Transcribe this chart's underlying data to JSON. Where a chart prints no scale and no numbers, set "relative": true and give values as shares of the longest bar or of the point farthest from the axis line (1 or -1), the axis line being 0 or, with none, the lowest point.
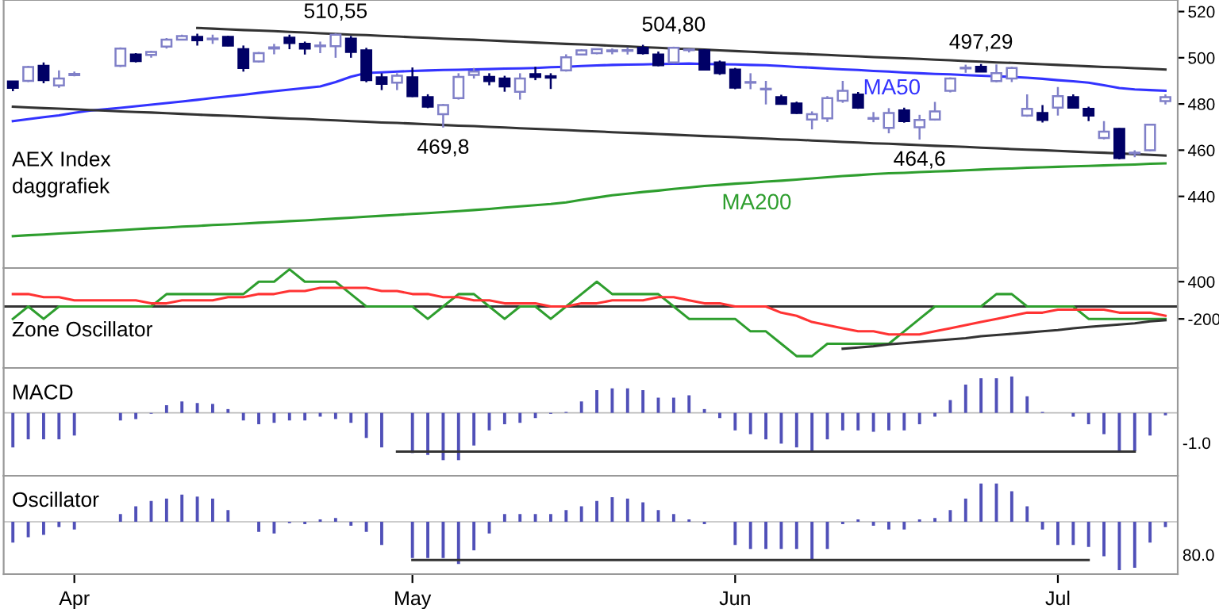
{
  "chart_data": [
    {
      "type": "candlestick",
      "title": "AEX Index",
      "subtitle": "daggrafiek",
      "categories": [
        null,
        null,
        null,
        null,
        null,
        null,
        null,
        null,
        null,
        null,
        null,
        null,
        null,
        null,
        null,
        null,
        null,
        null,
        null,
        null,
        null,
        null,
        null,
        null,
        null,
        null,
        null,
        null,
        null,
        null,
        null,
        null,
        null,
        null,
        null,
        null,
        null,
        null,
        null,
        null,
        null,
        null,
        null,
        null,
        null,
        null,
        null,
        null,
        null,
        null,
        null,
        null,
        null,
        null,
        null,
        null,
        null,
        null,
        null,
        null,
        null,
        null,
        null,
        null,
        null,
        null,
        null,
        null,
        null,
        null,
        null,
        null,
        null,
        null,
        null,
        null
      ],
      "ohlc": [
        [
          489.7,
          490,
          485.5,
          487
        ],
        [
          490,
          496.5,
          489.5,
          496
        ],
        [
          496.5,
          498,
          489,
          490.3
        ],
        [
          488,
          494.5,
          487,
          491
        ],
        [
          492.5,
          494,
          492,
          493
        ],
        null,
        null,
        [
          496.5,
          504.5,
          496,
          504
        ],
        [
          501.4,
          502,
          498,
          498.6
        ],
        [
          501.2,
          503,
          500,
          502.5
        ],
        [
          504.8,
          508.5,
          504,
          507.8
        ],
        [
          507.8,
          510,
          507.5,
          509.4
        ],
        [
          509,
          510.4,
          505.3,
          507.6
        ],
        [
          508,
          510,
          506,
          508.3
        ],
        [
          509,
          509.5,
          505,
          505.3
        ],
        [
          503.7,
          505.3,
          494,
          495.6
        ],
        [
          498.4,
          502.5,
          498,
          502
        ],
        [
          504,
          506,
          501.5,
          504.5
        ],
        [
          508.7,
          510,
          503.7,
          506.4
        ],
        [
          506,
          507,
          501.4,
          504
        ],
        [
          505,
          507,
          502,
          505.2
        ],
        [
          505,
          510.55,
          500,
          510
        ],
        [
          508.3,
          509.4,
          500,
          502.5
        ],
        [
          503.2,
          504.3,
          489.4,
          490.3
        ],
        [
          491.5,
          493.3,
          486,
          488.7
        ],
        [
          489.2,
          493.3,
          486,
          492.2
        ],
        [
          491.5,
          495.8,
          483,
          483.4
        ],
        [
          483,
          484.2,
          478.2,
          478.8
        ],
        [
          475.6,
          480,
          469.8,
          479.5
        ],
        [
          482.5,
          493.3,
          481.9,
          491.7
        ],
        [
          492.6,
          495.6,
          491,
          494
        ],
        [
          491.7,
          493.3,
          488.1,
          489.9
        ],
        [
          491,
          492.2,
          485.3,
          487.6
        ],
        [
          485.3,
          493.3,
          481.9,
          491
        ],
        [
          492.9,
          496.1,
          490.3,
          491.7
        ],
        [
          492,
          493.3,
          486.5,
          491.4
        ],
        [
          494.5,
          501.5,
          494,
          500.2
        ],
        [
          501.4,
          503.7,
          501,
          503.2
        ],
        [
          502,
          504,
          501.5,
          503.7
        ],
        [
          502.8,
          504,
          501.5,
          503.2
        ],
        [
          503,
          504.5,
          501.4,
          503.2
        ],
        [
          504.3,
          505.6,
          501.4,
          502
        ],
        [
          501.4,
          502.7,
          496.3,
          496.8
        ],
        [
          498,
          504.8,
          497.5,
          504.3
        ],
        [
          503.3,
          504,
          502.3,
          503.5
        ],
        [
          503.2,
          503.7,
          494.5,
          494.9
        ],
        [
          498,
          498.8,
          492.6,
          493.3
        ],
        [
          494.9,
          495.6,
          486.4,
          487.1
        ],
        [
          489.2,
          493.3,
          486.4,
          489.4
        ],
        [
          486.3,
          490,
          479.8,
          486.5
        ],
        [
          483,
          484,
          479.9,
          480
        ],
        [
          480.2,
          481,
          475.7,
          476.1
        ],
        [
          473.3,
          476.8,
          469,
          475.6
        ],
        [
          473.8,
          483.4,
          472.2,
          482.5
        ],
        [
          481.4,
          490,
          480.5,
          485.7
        ],
        [
          484.1,
          485.2,
          477.9,
          478.4
        ],
        [
          473.6,
          476.5,
          472.1,
          473.8
        ],
        [
          469.7,
          478.2,
          467.3,
          476.1
        ],
        [
          477.2,
          478.4,
          471.9,
          472.6
        ],
        [
          469.9,
          475.3,
          464.6,
          473.1
        ],
        [
          473.3,
          480.9,
          472.8,
          476.8
        ],
        [
          485.7,
          491.5,
          485,
          491
        ],
        [
          495.4,
          497,
          493.5,
          495.6
        ],
        [
          496.1,
          497.29,
          494,
          494
        ],
        [
          489.9,
          497.1,
          489.4,
          493.3
        ],
        [
          491,
          496.1,
          489.5,
          495.6
        ],
        [
          475,
          484.2,
          474.5,
          477.9
        ],
        [
          476.1,
          479.5,
          472,
          473.1
        ],
        [
          478.4,
          487.3,
          475,
          483.4
        ],
        [
          483,
          484.2,
          478,
          478.4
        ],
        [
          477.9,
          478.8,
          472.6,
          475
        ],
        [
          465.3,
          472.6,
          464.7,
          468
        ],
        [
          469.2,
          469.6,
          456,
          456.6
        ],
        [
          458.6,
          460,
          457,
          458.8
        ],
        [
          460,
          471.5,
          459.5,
          471
        ],
        [
          481.2,
          484.2,
          479.8,
          483
        ]
      ],
      "series": [
        {
          "type": "line",
          "name": "MA50",
          "color": "#3333ff",
          "values": [
            472.6,
            473.4,
            474.3,
            475.1,
            476.2,
            477.1,
            477.7,
            478.3,
            479,
            479.7,
            480.4,
            481.1,
            481.8,
            482.6,
            483.3,
            484,
            484.8,
            485.5,
            486.2,
            486.9,
            487.6,
            489.5,
            491.8,
            493.4,
            493.7,
            494,
            494.3,
            494.5,
            494.7,
            494.8,
            495,
            495.1,
            495.3,
            495.4,
            495.6,
            495.9,
            496.1,
            496.4,
            496.7,
            496.9,
            497,
            497.1,
            497.3,
            497.4,
            497.5,
            497.3,
            497.2,
            497.1,
            496.9,
            496.8,
            496.4,
            496,
            495.7,
            495.3,
            495,
            494.7,
            494.3,
            494,
            493.6,
            493.3,
            493,
            492.8,
            492.5,
            492.2,
            492,
            491.7,
            491.4,
            490.9,
            490.3,
            489.8,
            489.2,
            488.1,
            486.9,
            486.3,
            486,
            485.7
          ]
        },
        {
          "type": "line",
          "name": "MA200",
          "color": "#2e9e2e",
          "values": [
            422.8,
            423.2,
            423.5,
            423.9,
            424.3,
            424.6,
            425,
            425.4,
            425.8,
            426.2,
            426.5,
            426.9,
            427.2,
            427.6,
            427.9,
            428.2,
            428.6,
            428.9,
            429.3,
            429.6,
            430,
            430.4,
            430.8,
            431.2,
            431.6,
            432,
            432.4,
            432.8,
            433.2,
            433.6,
            434.1,
            434.6,
            435.2,
            435.7,
            436.2,
            436.7,
            437.4,
            438.5,
            439.5,
            440.5,
            441.2,
            441.9,
            442.5,
            443.2,
            443.8,
            444.5,
            445,
            445.5,
            445.9,
            446.4,
            446.8,
            447.3,
            447.8,
            448.3,
            448.8,
            449.2,
            449.7,
            450,
            450.2,
            450.5,
            450.8,
            451,
            451.3,
            451.6,
            451.9,
            452.1,
            452.4,
            452.6,
            452.8,
            453,
            453.2,
            453.4,
            453.6,
            453.8,
            454.1,
            454.3
          ]
        },
        {
          "type": "line",
          "color": "#333333",
          "values": [
            null,
            null,
            null,
            null,
            null,
            null,
            null,
            null,
            null,
            null,
            null,
            null,
            512.9,
            512.6,
            512.3,
            512.0,
            511.8,
            511.5,
            511.2,
            510.9,
            510.6,
            510.3,
            510.0,
            509.8,
            509.5,
            509.2,
            508.9,
            508.6,
            508.3,
            508.0,
            507.8,
            507.5,
            507.2,
            506.9,
            506.6,
            506.3,
            506.0,
            505.8,
            505.5,
            505.2,
            504.9,
            504.6,
            504.3,
            504.0,
            503.8,
            503.5,
            503.2,
            502.9,
            502.6,
            502.3,
            502.0,
            501.8,
            501.5,
            501.2,
            500.9,
            500.6,
            500.3,
            500.0,
            499.8,
            499.5,
            499.2,
            498.9,
            498.6,
            498.3,
            498.0,
            497.8,
            497.5,
            497.2,
            496.9,
            496.6,
            496.3,
            496.0,
            495.8,
            495.5,
            495.2,
            494.9
          ]
        },
        {
          "type": "line",
          "color": "#333333",
          "values": [
            478.8,
            478.5,
            478.2,
            478.0,
            477.7,
            477.4,
            477.1,
            476.8,
            476.5,
            476.3,
            476.0,
            475.7,
            475.4,
            475.1,
            474.9,
            474.6,
            474.3,
            474.0,
            473.7,
            473.5,
            473.2,
            472.9,
            472.6,
            472.3,
            472.0,
            471.8,
            471.5,
            471.2,
            470.9,
            470.6,
            470.4,
            470.1,
            469.8,
            469.5,
            469.2,
            469.0,
            468.7,
            468.4,
            468.1,
            467.8,
            467.5,
            467.3,
            467.0,
            466.7,
            466.4,
            466.1,
            465.9,
            465.6,
            465.3,
            465.0,
            464.7,
            464.5,
            464.2,
            463.9,
            463.6,
            463.3,
            463.0,
            462.8,
            462.5,
            462.2,
            461.9,
            461.7,
            461.4,
            461.1,
            460.8,
            460.5,
            460.2,
            460.0,
            459.7,
            459.4,
            459.1,
            458.9,
            458.6,
            458.3,
            458.0,
            457.7
          ]
        }
      ],
      "annotations": [
        {
          "text": "510,55",
          "y": 510.55
        },
        {
          "text": "469,8",
          "y": 469.8
        },
        {
          "text": "504,80",
          "y": 504.8
        },
        {
          "text": "497,29",
          "y": 497.29
        },
        {
          "text": "464,6",
          "y": 464.6
        }
      ],
      "ylim": [
        409,
        525
      ],
      "yticks": [
        440,
        460,
        480,
        500,
        520
      ],
      "tick_labels": "y"
    },
    {
      "type": "line",
      "title": "Zone Oscillator",
      "categories": [
        null,
        null,
        null,
        null,
        null,
        null,
        null,
        null,
        null,
        null,
        null,
        null,
        null,
        null,
        null,
        null,
        null,
        null,
        null,
        null,
        null,
        null,
        null,
        null,
        null,
        null,
        null,
        null,
        null,
        null,
        null,
        null,
        null,
        null,
        null,
        null,
        null,
        null,
        null,
        null,
        null,
        null,
        null,
        null,
        null,
        null,
        null,
        null,
        null,
        null,
        null,
        null,
        null,
        null,
        null,
        null,
        null,
        null,
        null,
        null,
        null,
        null,
        null,
        null,
        null,
        null,
        null,
        null,
        null,
        null,
        null,
        null,
        null,
        null,
        null,
        null
      ],
      "series": [
        {
          "color": "#2e9e2e",
          "values": [
            -200,
            0,
            -200,
            0,
            0,
            0,
            0,
            0,
            0,
            0,
            200,
            200,
            200,
            200,
            200,
            200,
            400,
            400,
            600,
            400,
            400,
            400,
            200,
            0,
            0,
            0,
            0,
            -200,
            0,
            200,
            200,
            0,
            -200,
            0,
            0,
            -200,
            0,
            200,
            400,
            200,
            200,
            200,
            200,
            0,
            -200,
            -200,
            -200,
            -200,
            -400,
            -400,
            -600,
            -800,
            -800,
            -600,
            -600,
            -600,
            -600,
            -600,
            -400,
            -200,
            0,
            0,
            0,
            0,
            200,
            200,
            0,
            0,
            0,
            0,
            -200,
            -200,
            -200,
            -200,
            -200,
            -200
          ]
        },
        {
          "color": "#ff3333",
          "values": [
            200,
            200,
            150,
            150,
            100,
            100,
            100,
            100,
            100,
            50,
            50,
            100,
            100,
            100,
            150,
            150,
            200,
            200,
            250,
            250,
            300,
            300,
            300,
            300,
            250,
            250,
            200,
            200,
            150,
            150,
            100,
            100,
            50,
            50,
            50,
            0,
            0,
            50,
            50,
            100,
            100,
            100,
            150,
            150,
            100,
            50,
            50,
            0,
            0,
            0,
            -100,
            -150,
            -250,
            -300,
            -350,
            -400,
            -400,
            -450,
            -450,
            -450,
            -400,
            -350,
            -300,
            -250,
            -200,
            -150,
            -100,
            -100,
            -50,
            -50,
            -50,
            -50,
            -100,
            -100,
            -100,
            -150
          ]
        },
        {
          "color": "#333333",
          "values": [
            null,
            null,
            null,
            null,
            null,
            null,
            null,
            null,
            null,
            null,
            null,
            null,
            null,
            null,
            null,
            null,
            null,
            null,
            null,
            null,
            null,
            null,
            null,
            null,
            null,
            null,
            null,
            null,
            null,
            null,
            null,
            null,
            null,
            null,
            null,
            null,
            null,
            null,
            null,
            null,
            null,
            null,
            null,
            null,
            null,
            null,
            null,
            null,
            null,
            null,
            null,
            null,
            null,
            null,
            -680,
            -660,
            -640,
            -610,
            -590,
            -570,
            -550,
            -530,
            -510,
            -480,
            -460,
            -440,
            -420,
            -400,
            -380,
            -350,
            -330,
            -310,
            -290,
            -270,
            -240,
            -220
          ]
        }
      ],
      "ref_lines": [
        {
          "axis": "y",
          "value": 0,
          "color": "#333333"
        }
      ],
      "ylim": [
        -990,
        620
      ],
      "yticks": [
        -200,
        400
      ],
      "tick_labels": "y"
    },
    {
      "type": "bar",
      "title": "MACD",
      "relative": true,
      "color": "#5050b8",
      "categories": [
        null,
        null,
        null,
        null,
        null,
        null,
        null,
        null,
        null,
        null,
        null,
        null,
        null,
        null,
        null,
        null,
        null,
        null,
        null,
        null,
        null,
        null,
        null,
        null,
        null,
        null,
        null,
        null,
        null,
        null,
        null,
        null,
        null,
        null,
        null,
        null,
        null,
        null,
        null,
        null,
        null,
        null,
        null,
        null,
        null,
        null,
        null,
        null,
        null,
        null,
        null,
        null,
        null,
        null,
        null,
        null,
        null,
        null,
        null,
        null,
        null,
        null,
        null,
        null,
        null,
        null,
        null,
        null,
        null,
        null,
        null,
        null,
        null,
        null,
        null,
        null
      ],
      "values": [
        -0.73,
        -0.56,
        -0.56,
        -0.56,
        -0.48,
        null,
        null,
        -0.16,
        -0.13,
        -0.02,
        0.16,
        0.24,
        0.21,
        0.19,
        0.08,
        -0.16,
        -0.24,
        -0.21,
        -0.16,
        -0.16,
        -0.08,
        -0.13,
        -0.21,
        -0.53,
        -0.73,
        0,
        -0.85,
        -0.89,
        -1,
        -1,
        -0.69,
        -0.37,
        -0.24,
        -0.21,
        -0.11,
        -0.02,
        0.02,
        0.24,
        0.48,
        0.52,
        0.52,
        0.48,
        0.32,
        0.32,
        0.37,
        0.08,
        -0.11,
        -0.37,
        -0.45,
        -0.56,
        -0.65,
        -0.73,
        -0.81,
        -0.56,
        -0.37,
        -0.37,
        -0.4,
        -0.37,
        -0.37,
        -0.24,
        -0.08,
        0.27,
        0.6,
        0.73,
        0.73,
        0.77,
        0.35,
        0.02,
        0,
        -0.08,
        -0.24,
        -0.45,
        -0.81,
        -0.81,
        -0.48,
        -0.05
      ],
      "series": [
        {
          "type": "line",
          "color": "#333333",
          "values": [
            null,
            null,
            null,
            null,
            null,
            null,
            null,
            null,
            null,
            null,
            null,
            null,
            null,
            null,
            null,
            null,
            null,
            null,
            null,
            null,
            null,
            null,
            null,
            null,
            null,
            -0.82,
            -0.82,
            -0.82,
            -0.82,
            -0.82,
            -0.82,
            -0.82,
            -0.82,
            -0.82,
            -0.82,
            -0.82,
            -0.82,
            -0.82,
            -0.82,
            -0.82,
            -0.82,
            -0.82,
            -0.82,
            -0.82,
            -0.82,
            -0.82,
            -0.82,
            -0.82,
            -0.82,
            -0.82,
            -0.82,
            -0.82,
            -0.82,
            -0.82,
            -0.82,
            -0.82,
            -0.82,
            -0.82,
            -0.82,
            -0.82,
            -0.82,
            -0.82,
            -0.82,
            -0.82,
            -0.82,
            -0.82,
            -0.82,
            -0.82,
            -0.82,
            -0.82,
            -0.82,
            -0.82,
            -0.82,
            -0.82,
            null,
            null
          ]
        }
      ],
      "annotations": [
        "-1.0"
      ],
      "tick_labels": false
    },
    {
      "type": "bar",
      "title": "Oscillator",
      "relative": true,
      "color": "#5050b8",
      "categories": [
        null,
        null,
        null,
        null,
        "Apr",
        null,
        null,
        null,
        null,
        null,
        null,
        null,
        null,
        null,
        null,
        null,
        null,
        null,
        null,
        null,
        null,
        null,
        null,
        null,
        null,
        null,
        "May",
        null,
        null,
        null,
        null,
        null,
        null,
        null,
        null,
        null,
        null,
        null,
        null,
        null,
        null,
        null,
        null,
        null,
        null,
        null,
        null,
        "Jun",
        null,
        null,
        null,
        null,
        null,
        null,
        null,
        null,
        null,
        null,
        null,
        null,
        null,
        null,
        null,
        null,
        null,
        null,
        null,
        null,
        "Jul",
        null,
        null,
        null,
        null,
        null,
        null,
        null
      ],
      "values": [
        -0.43,
        -0.32,
        -0.27,
        -0.11,
        -0.16,
        null,
        null,
        0.16,
        0.32,
        0.43,
        0.48,
        0.56,
        0.52,
        0.48,
        0.24,
        0,
        -0.21,
        -0.24,
        -0.03,
        -0.05,
        0.05,
        0.08,
        -0.08,
        -0.21,
        -0.48,
        0,
        -0.75,
        -0.75,
        -0.75,
        -0.87,
        -0.59,
        -0.24,
        0.16,
        0.16,
        0.16,
        0.16,
        0.24,
        0.32,
        0.43,
        0.51,
        0.48,
        0.4,
        0.24,
        0.16,
        0.05,
        -0.05,
        0,
        -0.48,
        -0.56,
        -0.56,
        -0.56,
        -0.56,
        -0.79,
        -0.56,
        -0.05,
        0.05,
        -0.08,
        -0.16,
        -0.16,
        0.05,
        0.08,
        0.24,
        0.48,
        0.79,
        0.79,
        0.63,
        0.32,
        -0.16,
        -0.48,
        -0.48,
        -0.52,
        -0.71,
        -1,
        -0.95,
        -0.43,
        -0.11
      ],
      "series": [
        {
          "type": "line",
          "color": "#333333",
          "values": [
            null,
            null,
            null,
            null,
            null,
            null,
            null,
            null,
            null,
            null,
            null,
            null,
            null,
            null,
            null,
            null,
            null,
            null,
            null,
            null,
            null,
            null,
            null,
            null,
            null,
            null,
            -0.79,
            -0.79,
            -0.79,
            -0.79,
            -0.79,
            -0.79,
            -0.79,
            -0.79,
            -0.79,
            -0.79,
            -0.79,
            -0.79,
            -0.79,
            -0.79,
            -0.79,
            -0.79,
            -0.79,
            -0.79,
            -0.79,
            -0.79,
            -0.79,
            -0.79,
            -0.79,
            -0.79,
            -0.79,
            -0.79,
            -0.79,
            -0.79,
            -0.79,
            -0.79,
            -0.79,
            -0.79,
            -0.79,
            -0.79,
            -0.79,
            -0.79,
            -0.79,
            -0.79,
            -0.79,
            -0.79,
            -0.79,
            -0.79,
            -0.79,
            -0.79,
            -0.79,
            null,
            null,
            null,
            null,
            null
          ]
        }
      ],
      "annotations": [
        "80.0"
      ],
      "tick_labels": "x"
    }
  ]
}
